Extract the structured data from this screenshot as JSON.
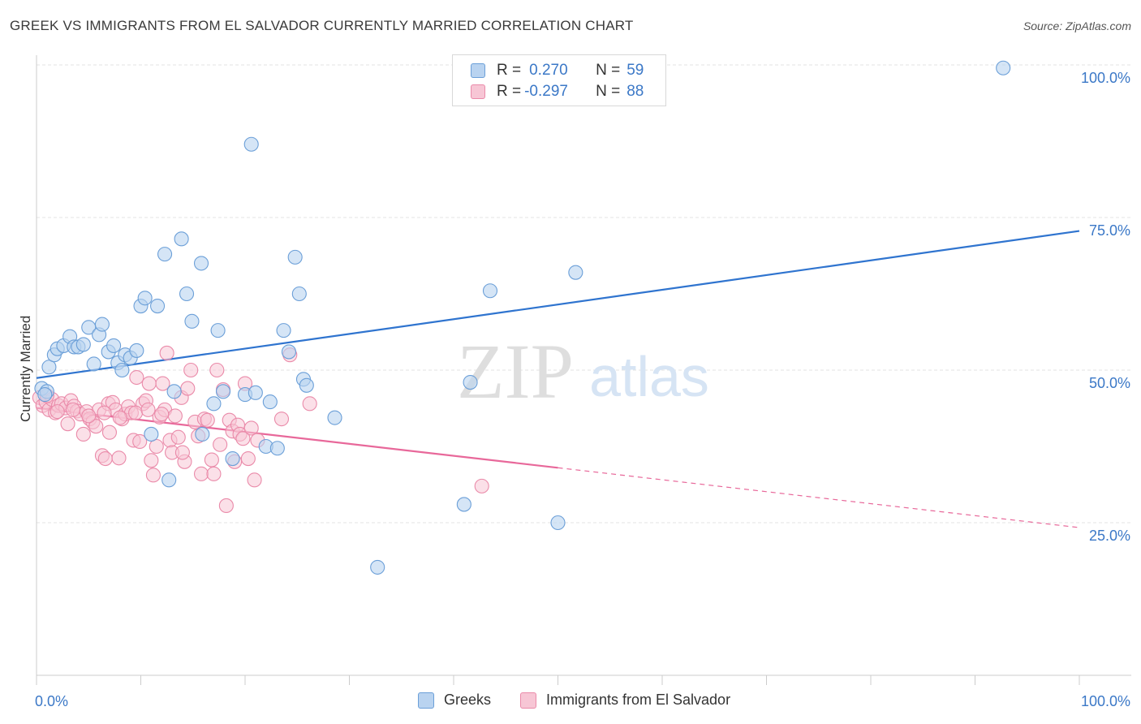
{
  "header": {
    "title": "GREEK VS IMMIGRANTS FROM EL SALVADOR CURRENTLY MARRIED CORRELATION CHART",
    "source": "Source: ZipAtlas.com"
  },
  "watermark": {
    "zip": "ZIP",
    "atlas": "atlas"
  },
  "colors": {
    "blue_fill": "#b9d3f0",
    "blue_stroke": "#6b9fd8",
    "blue_line": "#2f74cf",
    "pink_fill": "#f7c6d5",
    "pink_stroke": "#ea8aa9",
    "pink_line": "#e8689a",
    "value_text": "#3b78c7",
    "grid": "#e3e3e3"
  },
  "legend_top": {
    "rows": [
      {
        "r_label": "R =",
        "r_value": "0.270",
        "n_label": "N =",
        "n_value": "59"
      },
      {
        "r_label": "R =",
        "r_value": "-0.297",
        "n_label": "N =",
        "n_value": "88"
      }
    ]
  },
  "legend_bottom": {
    "items": [
      "Greeks",
      "Immigrants from El Salvador"
    ]
  },
  "chart_data": {
    "type": "scatter",
    "title": "GREEK VS IMMIGRANTS FROM EL SALVADOR CURRENTLY MARRIED CORRELATION CHART",
    "xlabel": "",
    "ylabel": "Currently Married",
    "xlim": [
      0,
      100
    ],
    "ylim": [
      0,
      100
    ],
    "x_ticks": [
      {
        "value": 0,
        "label": "0.0%"
      },
      {
        "value": 100,
        "label": "100.0%"
      }
    ],
    "y_ticks": [
      {
        "value": 25,
        "label": "25.0%"
      },
      {
        "value": 50,
        "label": "50.0%"
      },
      {
        "value": 75,
        "label": "75.0%"
      },
      {
        "value": 100,
        "label": "100.0%"
      }
    ],
    "grid": true,
    "legend_position": "top-center",
    "series": [
      {
        "name": "Greeks",
        "r": 0.27,
        "n": 59,
        "trend": {
          "x": [
            0,
            100
          ],
          "y": [
            48.7,
            72.8
          ],
          "dashed_from": null
        },
        "points": [
          [
            0.5,
            47.0
          ],
          [
            1.2,
            50.5
          ],
          [
            1.7,
            52.5
          ],
          [
            2.0,
            53.5
          ],
          [
            2.6,
            54.0
          ],
          [
            3.2,
            55.5
          ],
          [
            3.6,
            53.8
          ],
          [
            4.0,
            53.8
          ],
          [
            4.5,
            54.2
          ],
          [
            5.0,
            57.0
          ],
          [
            5.5,
            51.0
          ],
          [
            6.0,
            55.8
          ],
          [
            6.3,
            57.5
          ],
          [
            6.9,
            53.0
          ],
          [
            7.4,
            54.0
          ],
          [
            7.8,
            51.2
          ],
          [
            8.2,
            50.0
          ],
          [
            8.5,
            52.5
          ],
          [
            9.0,
            52.0
          ],
          [
            9.6,
            53.2
          ],
          [
            10.0,
            60.5
          ],
          [
            10.4,
            61.8
          ],
          [
            11.0,
            39.5
          ],
          [
            11.6,
            60.5
          ],
          [
            12.3,
            69.0
          ],
          [
            12.7,
            32.0
          ],
          [
            13.2,
            46.5
          ],
          [
            13.9,
            71.5
          ],
          [
            14.4,
            62.5
          ],
          [
            14.9,
            58.0
          ],
          [
            15.8,
            67.5
          ],
          [
            15.9,
            39.5
          ],
          [
            17.0,
            44.5
          ],
          [
            17.4,
            56.5
          ],
          [
            17.9,
            46.5
          ],
          [
            18.8,
            35.5
          ],
          [
            20.0,
            46.0
          ],
          [
            20.6,
            87.0
          ],
          [
            21.0,
            46.3
          ],
          [
            22.4,
            44.8
          ],
          [
            22.0,
            37.5
          ],
          [
            23.1,
            37.2
          ],
          [
            23.7,
            56.5
          ],
          [
            24.2,
            53.0
          ],
          [
            24.8,
            68.5
          ],
          [
            25.2,
            62.5
          ],
          [
            25.6,
            48.5
          ],
          [
            25.9,
            47.5
          ],
          [
            28.6,
            42.2
          ],
          [
            32.7,
            17.7
          ],
          [
            41.6,
            48.0
          ],
          [
            41.0,
            28.0
          ],
          [
            43.5,
            63.0
          ],
          [
            50.0,
            25.0
          ],
          [
            51.7,
            66.0
          ],
          [
            56.0,
            100.0
          ],
          [
            92.7,
            99.5
          ],
          [
            1.0,
            46.5
          ],
          [
            0.8,
            46.0
          ]
        ]
      },
      {
        "name": "Immigrants from El Salvador",
        "r": -0.297,
        "n": 88,
        "trend": {
          "x": [
            0,
            100
          ],
          "y": [
            43.8,
            24.2
          ],
          "dashed_from": 50
        },
        "points": [
          [
            0.3,
            45.5
          ],
          [
            0.6,
            44.2
          ],
          [
            0.9,
            44.8
          ],
          [
            1.2,
            43.5
          ],
          [
            1.5,
            45.2
          ],
          [
            1.8,
            43.0
          ],
          [
            2.1,
            44.2
          ],
          [
            2.4,
            44.5
          ],
          [
            2.8,
            43.8
          ],
          [
            3.0,
            41.2
          ],
          [
            3.3,
            45.0
          ],
          [
            3.6,
            44.1
          ],
          [
            3.9,
            43.3
          ],
          [
            4.2,
            42.8
          ],
          [
            4.5,
            39.5
          ],
          [
            4.8,
            43.2
          ],
          [
            5.1,
            42.0
          ],
          [
            5.4,
            41.5
          ],
          [
            5.7,
            40.8
          ],
          [
            6.0,
            43.5
          ],
          [
            6.3,
            36.0
          ],
          [
            6.6,
            35.5
          ],
          [
            6.9,
            44.5
          ],
          [
            7.0,
            39.8
          ],
          [
            7.3,
            44.7
          ],
          [
            7.6,
            43.5
          ],
          [
            7.9,
            35.6
          ],
          [
            8.2,
            42.0
          ],
          [
            8.5,
            42.8
          ],
          [
            8.8,
            44.0
          ],
          [
            9.1,
            43.0
          ],
          [
            9.3,
            38.5
          ],
          [
            9.6,
            48.8
          ],
          [
            9.9,
            38.3
          ],
          [
            10.2,
            44.5
          ],
          [
            10.5,
            45.0
          ],
          [
            10.8,
            47.8
          ],
          [
            11.0,
            35.2
          ],
          [
            11.2,
            32.8
          ],
          [
            11.5,
            37.5
          ],
          [
            11.8,
            42.3
          ],
          [
            12.1,
            47.8
          ],
          [
            12.3,
            43.5
          ],
          [
            12.5,
            52.8
          ],
          [
            12.8,
            38.5
          ],
          [
            13.0,
            36.5
          ],
          [
            13.3,
            42.5
          ],
          [
            13.6,
            39.0
          ],
          [
            13.9,
            45.5
          ],
          [
            14.2,
            35.0
          ],
          [
            14.5,
            47.0
          ],
          [
            14.8,
            50.0
          ],
          [
            15.2,
            41.5
          ],
          [
            15.5,
            39.2
          ],
          [
            15.8,
            33.0
          ],
          [
            16.1,
            42.0
          ],
          [
            16.4,
            41.8
          ],
          [
            16.8,
            35.3
          ],
          [
            17.0,
            33.0
          ],
          [
            17.3,
            50.0
          ],
          [
            17.6,
            37.8
          ],
          [
            17.9,
            46.8
          ],
          [
            18.2,
            27.8
          ],
          [
            18.5,
            41.8
          ],
          [
            18.8,
            40.0
          ],
          [
            19.0,
            35.0
          ],
          [
            19.3,
            41.0
          ],
          [
            19.5,
            39.5
          ],
          [
            19.8,
            38.8
          ],
          [
            20.0,
            47.8
          ],
          [
            20.3,
            35.5
          ],
          [
            20.6,
            40.5
          ],
          [
            20.9,
            32.0
          ],
          [
            21.2,
            38.5
          ],
          [
            23.5,
            42.0
          ],
          [
            24.3,
            52.5
          ],
          [
            26.2,
            44.5
          ],
          [
            42.7,
            31.0
          ],
          [
            1.0,
            45.8
          ],
          [
            2.0,
            43.2
          ],
          [
            3.5,
            43.5
          ],
          [
            5.0,
            42.5
          ],
          [
            6.5,
            43.0
          ],
          [
            8.0,
            42.2
          ],
          [
            9.5,
            43.0
          ],
          [
            10.7,
            43.5
          ],
          [
            12.0,
            42.8
          ],
          [
            14.0,
            36.5
          ]
        ]
      }
    ]
  }
}
